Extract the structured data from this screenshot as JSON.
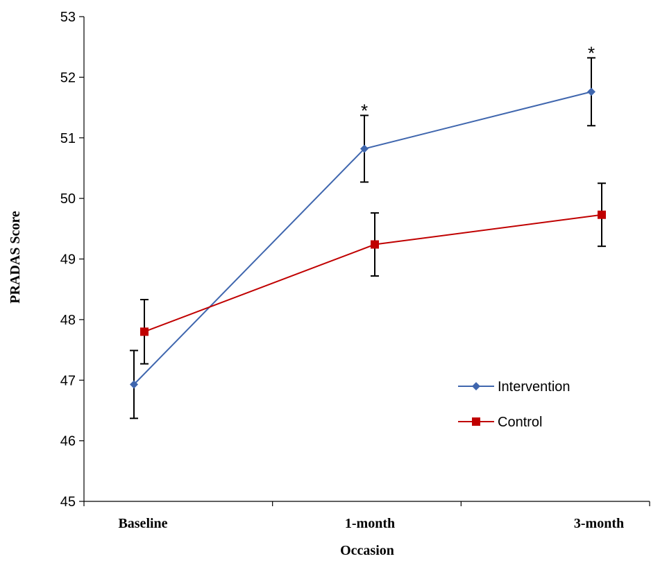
{
  "chart_data": {
    "type": "line",
    "xlabel": "Occasion",
    "ylabel": "PRADAS Score",
    "categories": [
      "Baseline",
      "1-month",
      "3-month"
    ],
    "ylim": [
      45,
      53
    ],
    "yticks": [
      45,
      46,
      47,
      48,
      49,
      50,
      51,
      52,
      53
    ],
    "grid": false,
    "legend_position": "bottom-right",
    "series": [
      {
        "name": "Intervention",
        "color": "#3F66AE",
        "marker": "diamond",
        "values": [
          46.93,
          50.82,
          51.76
        ],
        "error": [
          0.56,
          0.55,
          0.56
        ]
      },
      {
        "name": "Control",
        "color": "#C00000",
        "marker": "square",
        "values": [
          47.8,
          49.24,
          49.73
        ],
        "error": [
          0.53,
          0.52,
          0.52
        ]
      }
    ],
    "annotations": [
      {
        "category": "1-month",
        "text": "*"
      },
      {
        "category": "3-month",
        "text": "*"
      }
    ]
  }
}
